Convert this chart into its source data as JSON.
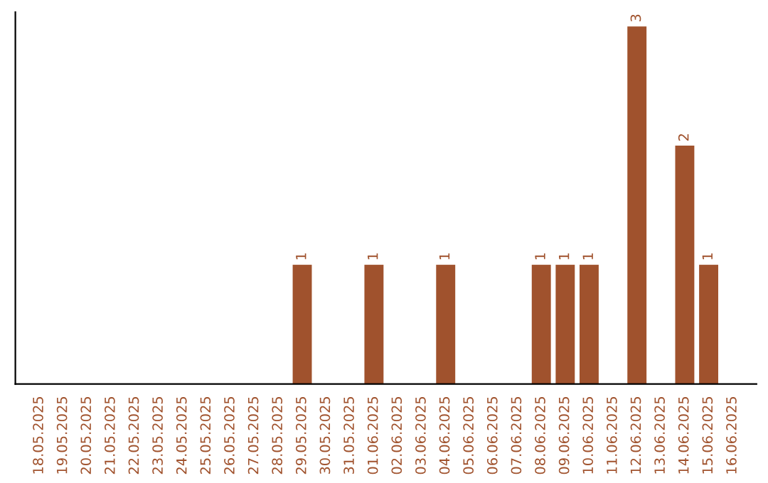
{
  "chart_data": {
    "type": "bar",
    "categories": [
      "18.05.2025",
      "19.05.2025",
      "20.05.2025",
      "21.05.2025",
      "22.05.2025",
      "23.05.2025",
      "24.05.2025",
      "25.05.2025",
      "26.05.2025",
      "27.05.2025",
      "28.05.2025",
      "29.05.2025",
      "30.05.2025",
      "31.05.2025",
      "01.06.2025",
      "02.06.2025",
      "03.06.2025",
      "04.06.2025",
      "05.06.2025",
      "06.06.2025",
      "07.06.2025",
      "08.06.2025",
      "09.06.2025",
      "10.06.2025",
      "11.06.2025",
      "12.06.2025",
      "13.06.2025",
      "14.06.2025",
      "15.06.2025",
      "16.06.2025"
    ],
    "values": [
      0,
      0,
      0,
      0,
      0,
      0,
      0,
      0,
      0,
      0,
      0,
      1,
      0,
      0,
      1,
      0,
      0,
      1,
      0,
      0,
      0,
      1,
      1,
      1,
      0,
      3,
      0,
      2,
      1,
      0
    ],
    "value_labels": [
      null,
      null,
      null,
      null,
      null,
      null,
      null,
      null,
      null,
      null,
      null,
      "1",
      null,
      null,
      "1",
      null,
      null,
      "1",
      null,
      null,
      null,
      "1",
      "1",
      "1",
      null,
      "3",
      null,
      "2",
      "1",
      null
    ],
    "color": "#a0522d",
    "tick_labels": "x",
    "grid": false,
    "legend": false
  }
}
